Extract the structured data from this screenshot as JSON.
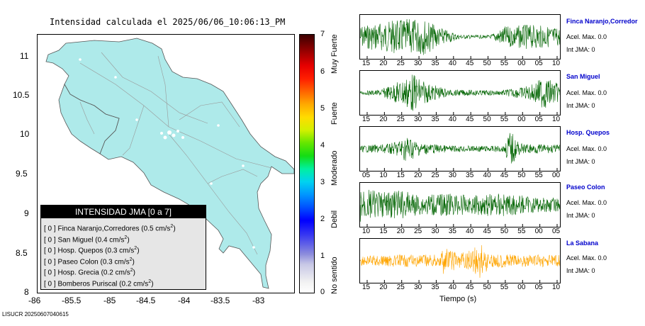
{
  "title": "Intensidad calculada el 2025/06/06_10:06:13_PM",
  "footer_id": "LISUCR 20250607040615",
  "map": {
    "lon_ticks": [
      "-86",
      "-85.5",
      "-85",
      "-84.5",
      "-84",
      "-83.5",
      "-83"
    ],
    "lat_ticks": [
      "11",
      "10.5",
      "10",
      "9.5",
      "9",
      "8.5",
      "8"
    ]
  },
  "legend": {
    "title": "INTENSIDAD JMA [0 a 7]",
    "entries": [
      {
        "int": "[ 0 ]",
        "name": "Finca Naranjo,Corredores (0.5 cm/s",
        "sup": "2",
        "close": ")"
      },
      {
        "int": "[ 0 ]",
        "name": "San Miguel (0.4 cm/s",
        "sup": "2",
        "close": ")"
      },
      {
        "int": "[ 0 ]",
        "name": "Hosp. Quepos (0.3 cm/s",
        "sup": "2",
        "close": ")"
      },
      {
        "int": "[ 0 ]",
        "name": "Paseo Colon (0.3 cm/s",
        "sup": "2",
        "close": ")"
      },
      {
        "int": "[ 0 ]",
        "name": "Hosp. Grecia (0.2 cm/s",
        "sup": "2",
        "close": ")"
      },
      {
        "int": "[ 0 ]",
        "name": "Bomberos Puriscal (0.2 cm/s",
        "sup": "2",
        "close": ")"
      }
    ]
  },
  "colorbar": {
    "ticks": [
      "7",
      "6",
      "5",
      "4",
      "3",
      "2",
      "1",
      "0"
    ],
    "words": [
      "Muy Fuerte",
      "Fuerte",
      "Moderado",
      "Debil",
      "No sentido"
    ]
  },
  "chart_data": {
    "type": "line",
    "xlabel": "Tiempo (s)",
    "panels": [
      {
        "station": "Finca Naranjo,Corredor",
        "acel": "Acel. Max. 0.0",
        "int": "Int JMA: 0",
        "color": "#006400",
        "ticks": [
          "15",
          "20",
          "25",
          "30",
          "35",
          "40",
          "45",
          "50",
          "55",
          "00",
          "05",
          "10"
        ],
        "envelope": [
          [
            0,
            0.55
          ],
          [
            0.1,
            0.7
          ],
          [
            0.2,
            0.85
          ],
          [
            0.32,
            0.9
          ],
          [
            0.4,
            0.45
          ],
          [
            0.5,
            0.1
          ],
          [
            0.65,
            0.08
          ],
          [
            0.72,
            0.5
          ],
          [
            0.85,
            0.6
          ],
          [
            1,
            0.45
          ]
        ]
      },
      {
        "station": "San Miguel",
        "acel": "Acel. Max. 0.0",
        "int": "Int JMA: 0",
        "color": "#006400",
        "ticks": [
          "15",
          "20",
          "25",
          "30",
          "35",
          "40",
          "45",
          "50",
          "55",
          "00",
          "05",
          "10"
        ],
        "envelope": [
          [
            0,
            0.08
          ],
          [
            0.1,
            0.15
          ],
          [
            0.2,
            0.6
          ],
          [
            0.26,
            0.95
          ],
          [
            0.33,
            0.5
          ],
          [
            0.45,
            0.15
          ],
          [
            0.7,
            0.12
          ],
          [
            0.85,
            0.35
          ],
          [
            0.92,
            0.8
          ],
          [
            1,
            0.4
          ]
        ]
      },
      {
        "station": "Hosp. Quepos",
        "acel": "Acel. Max. 0.0",
        "int": "Int JMA: 0",
        "color": "#006400",
        "ticks": [
          "05",
          "10",
          "15",
          "20",
          "25",
          "30",
          "35",
          "40",
          "45",
          "50",
          "55",
          "00"
        ],
        "envelope": [
          [
            0,
            0.15
          ],
          [
            0.15,
            0.25
          ],
          [
            0.24,
            0.65
          ],
          [
            0.3,
            0.3
          ],
          [
            0.45,
            0.15
          ],
          [
            0.72,
            0.15
          ],
          [
            0.75,
            0.9
          ],
          [
            0.8,
            0.25
          ],
          [
            1,
            0.2
          ]
        ]
      },
      {
        "station": "Paseo Colon",
        "acel": "Acel. Max. 0.0",
        "int": "Int JMA: 0",
        "color": "#006400",
        "ticks": [
          "10",
          "15",
          "20",
          "25",
          "30",
          "35",
          "40",
          "45",
          "50",
          "55",
          "00",
          "05"
        ],
        "envelope": [
          [
            0,
            0.9
          ],
          [
            0.1,
            0.6
          ],
          [
            0.2,
            0.7
          ],
          [
            0.3,
            0.5
          ],
          [
            0.45,
            0.55
          ],
          [
            0.55,
            0.45
          ],
          [
            0.7,
            0.6
          ],
          [
            0.85,
            0.4
          ],
          [
            1,
            0.35
          ]
        ]
      },
      {
        "station": "La Sabana",
        "acel": "Acel. Max. 0.0",
        "int": "Int JMA: 0",
        "color": "#ffa500",
        "ticks": [
          "15",
          "20",
          "25",
          "30",
          "35",
          "40",
          "45",
          "50",
          "55",
          "00",
          "05",
          "10"
        ],
        "envelope": [
          [
            0,
            0.25
          ],
          [
            0.2,
            0.3
          ],
          [
            0.4,
            0.3
          ],
          [
            0.42,
            0.7
          ],
          [
            0.5,
            0.35
          ],
          [
            0.6,
            0.9
          ],
          [
            0.65,
            0.35
          ],
          [
            0.8,
            0.3
          ],
          [
            1,
            0.3
          ]
        ]
      }
    ]
  }
}
